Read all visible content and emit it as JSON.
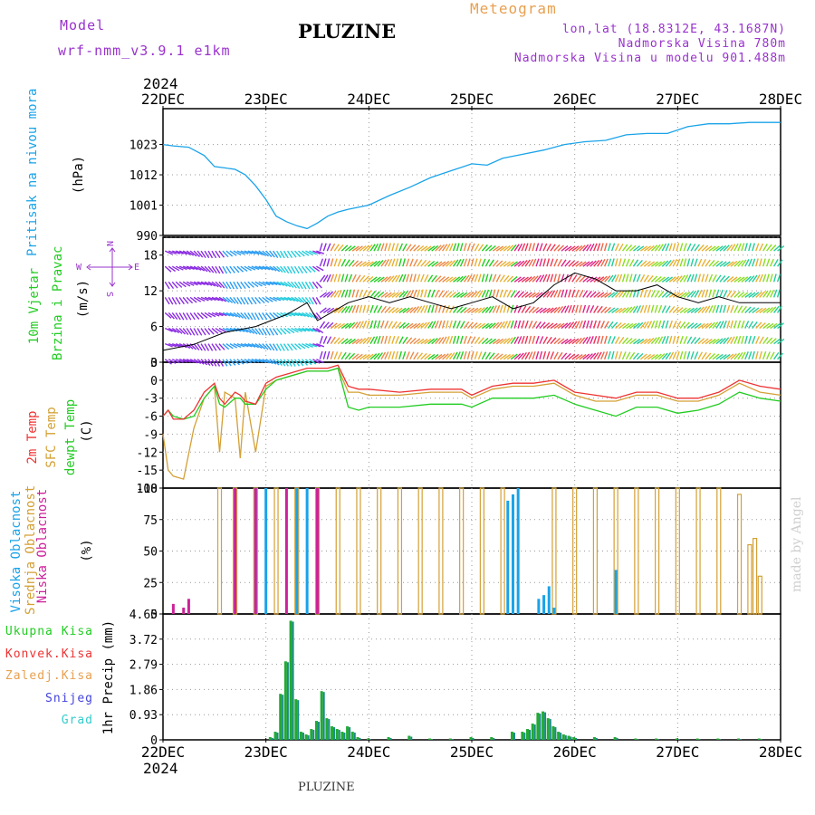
{
  "header": {
    "model_label": "Model",
    "model_name": "wrf-nmm_v3.9.1 e1km",
    "station_title": "PLUZINE",
    "meteogram_label": "Meteogram",
    "lonlat": "lon,lat (18.8312E, 43.1687N)",
    "elevation": "Nadmorska Visina 780m",
    "model_elevation": "Nadmorska Visina u modelu 901.488m",
    "footer_station": "PLUZINE",
    "credit": "made by Angel"
  },
  "colors": {
    "pressure": "#1aa3e8",
    "temp2m": "#ee3333",
    "sfc": "#d4a035",
    "dewpt": "#22cc22",
    "high_cloud": "#1aa3e8",
    "mid_cloud": "#d4a035",
    "low_cloud": "#cc2299",
    "purple": "#9933cc",
    "orange": "#e8a050"
  },
  "chart_data": [
    {
      "type": "line",
      "name": "pressure",
      "title": "",
      "ylabel": [
        "Pritisak na nivou mora",
        "(hPa)"
      ],
      "ylim": [
        990,
        1036
      ],
      "yticks": [
        "990",
        "1001",
        "1012",
        "1023"
      ],
      "x_top_year": "2024",
      "x_bottom_year": "2024",
      "x_labels": [
        "22DEC",
        "23DEC",
        "24DEC",
        "25DEC",
        "26DEC",
        "27DEC",
        "28DEC"
      ],
      "grid": true,
      "series": [
        {
          "x": [
            0,
            0.1,
            0.25,
            0.4,
            0.5,
            0.6,
            0.7,
            0.8,
            0.9,
            1.0,
            1.1,
            1.2,
            1.3,
            1.4,
            1.5,
            1.6,
            1.7,
            1.8,
            2.0,
            2.2,
            2.4,
            2.6,
            2.8,
            3.0,
            3.15,
            3.3,
            3.5,
            3.7,
            3.9,
            4.1,
            4.3,
            4.5,
            4.7,
            4.9,
            5.1,
            5.3,
            5.5,
            5.7,
            5.9,
            6.0
          ],
          "values": [
            1023,
            1022.5,
            1022,
            1019,
            1015,
            1014.5,
            1014,
            1012,
            1008,
            1003,
            997,
            995,
            993.5,
            992.5,
            994.5,
            997,
            998.5,
            999.5,
            1001,
            1004.5,
            1007.5,
            1011,
            1013.5,
            1016,
            1015.5,
            1018,
            1019.5,
            1021,
            1023,
            1024,
            1024.5,
            1026.5,
            1027,
            1027,
            1029.5,
            1030.5,
            1030.5,
            1031,
            1031,
            1031
          ]
        }
      ]
    },
    {
      "type": "barbs",
      "name": "wind",
      "ylabel": [
        "10m Vjetar",
        "Brzina i Pravac",
        "(m/s)"
      ],
      "ylim": [
        0,
        21
      ],
      "yticks": [
        "0",
        "6",
        "12",
        "18"
      ],
      "compass": [
        "N",
        "S",
        "W",
        "E"
      ],
      "series": [
        {
          "name": "speed",
          "x": [
            0,
            0.3,
            0.6,
            0.9,
            1.2,
            1.4,
            1.5,
            1.6,
            1.8,
            2.0,
            2.2,
            2.4,
            2.6,
            2.8,
            3.0,
            3.2,
            3.4,
            3.6,
            3.8,
            4.0,
            4.2,
            4.4,
            4.6,
            4.8,
            5.0,
            5.2,
            5.4,
            5.6,
            5.8,
            6.0
          ],
          "values": [
            2,
            3,
            5,
            6,
            8,
            10,
            7,
            8,
            10,
            11,
            10,
            11,
            10,
            9,
            10,
            11,
            9,
            10,
            13,
            15,
            14,
            12,
            12,
            13,
            11,
            10,
            11,
            10,
            10,
            10
          ]
        }
      ]
    },
    {
      "type": "line",
      "name": "temperature",
      "ylabel": [
        "2m Temp",
        "SFC Temp",
        "dewpt Temp",
        "(C)"
      ],
      "ylim": [
        -18,
        3
      ],
      "yticks": [
        "-18",
        "-15",
        "-12",
        "-9",
        "-6",
        "-3",
        "0",
        "3"
      ],
      "x": [
        0,
        0.05,
        0.1,
        0.2,
        0.3,
        0.4,
        0.5,
        0.55,
        0.6,
        0.7,
        0.75,
        0.8,
        0.9,
        1.0,
        1.1,
        1.2,
        1.4,
        1.6,
        1.7,
        1.8,
        1.9,
        2.0,
        2.3,
        2.6,
        2.9,
        3.0,
        3.2,
        3.4,
        3.6,
        3.8,
        4.0,
        4.2,
        4.4,
        4.6,
        4.8,
        5.0,
        5.2,
        5.4,
        5.6,
        5.8,
        6.0
      ],
      "series": [
        {
          "name": "2m",
          "values": [
            -6,
            -5,
            -6.5,
            -6.5,
            -5,
            -2,
            -0.5,
            -3,
            -4,
            -2,
            -2.5,
            -3.5,
            -4,
            -0.5,
            0.5,
            1,
            2,
            2,
            2.5,
            -1,
            -1.5,
            -1.5,
            -2,
            -1.5,
            -1.5,
            -2.5,
            -1,
            -0.5,
            -0.5,
            0,
            -2,
            -2.5,
            -3,
            -2,
            -2,
            -3,
            -3,
            -2,
            0,
            -1,
            -1.5
          ]
        },
        {
          "name": "sfc",
          "values": [
            -9,
            -15,
            -16,
            -16.5,
            -8,
            -3,
            -1,
            -12,
            -2,
            -3,
            -13,
            -2,
            -12,
            -1,
            0,
            0.5,
            1.5,
            1.5,
            2,
            -2,
            -2,
            -2.5,
            -2.5,
            -2,
            -2,
            -3,
            -1.5,
            -1,
            -1,
            -0.5,
            -2.5,
            -3.5,
            -3.5,
            -2.5,
            -2.5,
            -3.5,
            -3.5,
            -2.5,
            -0.5,
            -2,
            -2.5
          ]
        },
        {
          "name": "dewpt",
          "values": [
            -6,
            -5,
            -6,
            -6.5,
            -6,
            -3,
            -1,
            -4,
            -4.5,
            -3,
            -3,
            -4,
            -4,
            -1.5,
            0,
            0.5,
            1.5,
            1.5,
            2,
            -4.5,
            -5,
            -4.5,
            -4.5,
            -4,
            -4,
            -4.5,
            -3,
            -3,
            -3,
            -2.5,
            -4,
            -5,
            -6,
            -4.5,
            -4.5,
            -5.5,
            -5,
            -4,
            -2,
            -3,
            -3.5
          ]
        }
      ]
    },
    {
      "type": "bar",
      "name": "clouds",
      "ylabel": [
        "Visoka Oblacnost",
        "Srednja Oblacnost",
        "Niska Oblacnost",
        "(%)"
      ],
      "ylim": [
        0,
        100
      ],
      "yticks": [
        "0",
        "25",
        "50",
        "75",
        "100"
      ],
      "series": [
        {
          "name": "high",
          "x": [
            0.9,
            1.0,
            1.3,
            1.4,
            3.35,
            3.4,
            3.45,
            3.65,
            3.7,
            3.75,
            3.8,
            4.4
          ],
          "values": [
            100,
            100,
            100,
            100,
            90,
            95,
            100,
            12,
            15,
            22,
            5,
            35
          ]
        },
        {
          "name": "mid",
          "x": [
            0.55,
            0.7,
            0.9,
            1.1,
            1.3,
            1.5,
            1.7,
            1.9,
            2.1,
            2.3,
            2.5,
            2.7,
            2.9,
            3.1,
            3.3,
            3.8,
            4.0,
            4.2,
            4.4,
            4.6,
            4.8,
            5.0,
            5.2,
            5.4,
            5.6,
            5.7,
            5.75,
            5.8
          ],
          "values": [
            100,
            100,
            100,
            100,
            100,
            100,
            100,
            100,
            100,
            100,
            100,
            100,
            100,
            100,
            100,
            100,
            100,
            100,
            100,
            100,
            100,
            100,
            100,
            100,
            95,
            55,
            60,
            30
          ]
        },
        {
          "name": "low",
          "x": [
            0.1,
            0.2,
            0.25,
            0.7,
            0.9,
            1.2,
            1.5
          ],
          "values": [
            8,
            5,
            12,
            100,
            100,
            100,
            100
          ]
        }
      ]
    },
    {
      "type": "bar",
      "name": "precip",
      "ylabel": [
        "1hr Precip (mm)"
      ],
      "legend": [
        "Ukupna Kisa",
        "Konvek.Kisa",
        "Zaledj.Kisa",
        "Snijeg",
        "Grad"
      ],
      "ylim": [
        0,
        4.65
      ],
      "yticks": [
        "0",
        "0.93",
        "1.86",
        "2.79",
        "3.72",
        "4.65"
      ],
      "series": [
        {
          "name": "total",
          "x": [
            1.05,
            1.1,
            1.15,
            1.2,
            1.25,
            1.3,
            1.35,
            1.4,
            1.45,
            1.5,
            1.55,
            1.6,
            1.65,
            1.7,
            1.75,
            1.8,
            1.85,
            1.9,
            2.0,
            2.2,
            2.4,
            2.6,
            2.8,
            3.0,
            3.2,
            3.4,
            3.5,
            3.55,
            3.6,
            3.65,
            3.7,
            3.75,
            3.8,
            3.85,
            3.9,
            3.95,
            4.0,
            4.2,
            4.4,
            4.6,
            4.8,
            5.0,
            5.2,
            5.4,
            5.6,
            5.8
          ],
          "values": [
            0.1,
            0.3,
            1.7,
            2.9,
            4.4,
            1.5,
            0.3,
            0.2,
            0.4,
            0.7,
            1.8,
            0.8,
            0.5,
            0.4,
            0.3,
            0.5,
            0.3,
            0.1,
            0.05,
            0.1,
            0.15,
            0.05,
            0.05,
            0.1,
            0.1,
            0.3,
            0.3,
            0.4,
            0.6,
            1.0,
            1.05,
            0.8,
            0.5,
            0.3,
            0.2,
            0.15,
            0.1,
            0.1,
            0.1,
            0.05,
            0.05,
            0.05,
            0.05,
            0.05,
            0.05,
            0.05
          ]
        }
      ]
    }
  ]
}
